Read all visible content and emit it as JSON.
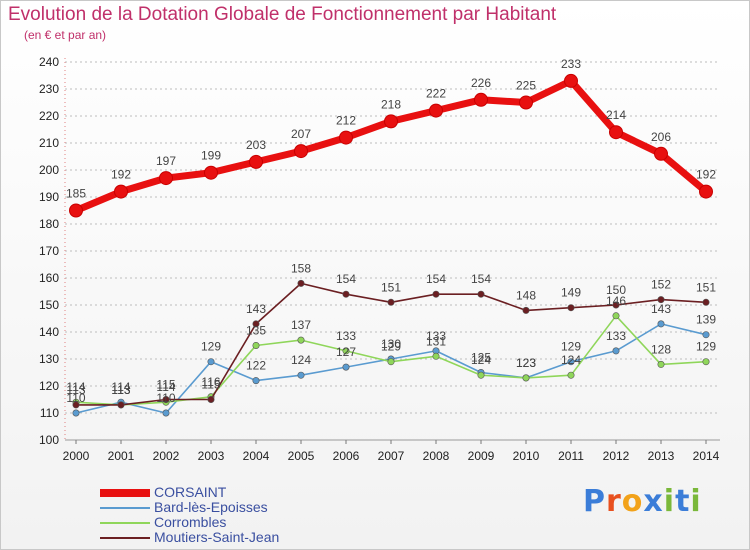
{
  "header": {
    "title": "Evolution de la Dotation Globale de Fonctionnement par Habitant",
    "subtitle": "(en € et par an)"
  },
  "brand": {
    "name": "Proxiti",
    "letters": [
      "P",
      "r",
      "o",
      "x",
      "i",
      "t",
      "i"
    ],
    "colors": [
      "#3b7dd8",
      "#e8501e",
      "#f2a21a",
      "#3b7dd8",
      "#7ab83a",
      "#3b7dd8",
      "#7ab83a"
    ]
  },
  "chart_data": {
    "type": "line",
    "title": "Evolution de la Dotation Globale de Fonctionnement par Habitant",
    "subtitle": "(en € et par an)",
    "xlabel": "",
    "ylabel": "",
    "ylim": [
      100,
      240
    ],
    "yticks": [
      100,
      110,
      120,
      130,
      140,
      150,
      160,
      170,
      180,
      190,
      200,
      210,
      220,
      230,
      240
    ],
    "grid": true,
    "legend_position": "bottom-left",
    "x": [
      "2000",
      "2001",
      "2002",
      "2003",
      "2004",
      "2005",
      "2006",
      "2007",
      "2008",
      "2009",
      "2010",
      "2011",
      "2012",
      "2013",
      "2014"
    ],
    "series": [
      {
        "name": "CORSAINT",
        "color": "#e81010",
        "values": [
          185,
          192,
          197,
          199,
          203,
          207,
          212,
          218,
          222,
          226,
          225,
          233,
          214,
          206,
          192
        ]
      },
      {
        "name": "Bard-lès-Epoisses",
        "color": "#5a9bd0",
        "values": [
          110,
          114,
          110,
          129,
          122,
          124,
          127,
          130,
          133,
          125,
          123,
          129,
          133,
          143,
          139
        ]
      },
      {
        "name": "Corrombles",
        "color": "#8fd65a",
        "values": [
          114,
          113,
          114,
          116,
          135,
          137,
          133,
          129,
          131,
          124,
          123,
          124,
          146,
          128,
          129
        ]
      },
      {
        "name": "Moutiers-Saint-Jean",
        "color": "#6b1f22",
        "values": [
          113,
          113,
          115,
          115,
          143,
          158,
          154,
          151,
          154,
          154,
          148,
          149,
          150,
          152,
          151
        ]
      }
    ]
  }
}
